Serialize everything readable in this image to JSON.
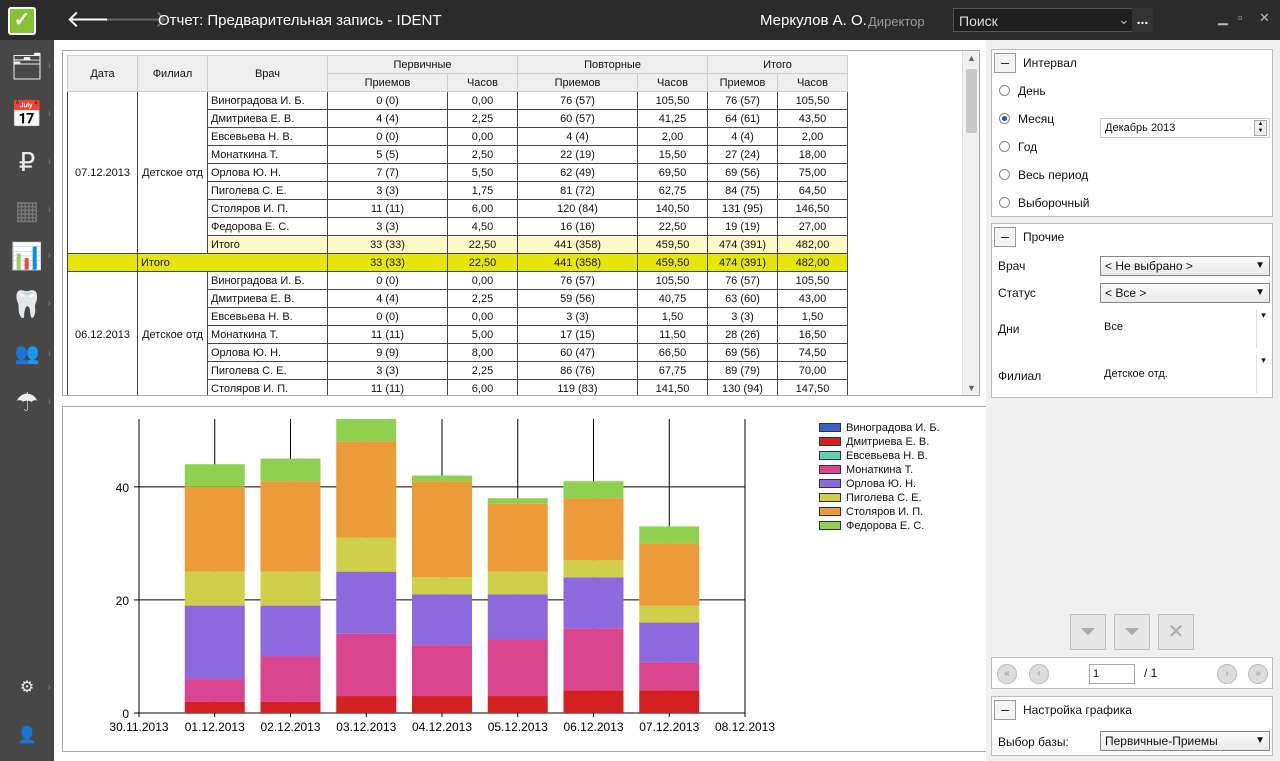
{
  "app": {
    "title": "Отчет: Предварительная запись  -  IDENT",
    "user": "Меркулов А. О.",
    "role": "Директор",
    "search_placeholder": "Поиск",
    "search_more": "...",
    "back_icon": "back-arrow-icon",
    "forward_icon": "forward-arrow-icon"
  },
  "sidebar": [
    "contacts-icon",
    "calendar-icon",
    "finance-icon",
    "cashbox-icon",
    "reports-icon",
    "tooth-icon",
    "staff-icon",
    "insurance-icon",
    "settings-icon",
    "user-icon"
  ],
  "grid": {
    "headers": {
      "date": "Дата",
      "branch": "Филиал",
      "doctor": "Врач",
      "primary": "Первичные",
      "repeat": "Повторные",
      "total": "Итого",
      "visits": "Приемов",
      "hours": "Часов"
    },
    "groups": [
      {
        "date": "07.12.2013",
        "branch": "Детское отд",
        "rows": [
          [
            "Виноградова И. Б.",
            "0 (0)",
            "0,00",
            "76 (57)",
            "105,50",
            "76 (57)",
            "105,50"
          ],
          [
            "Дмитриева Е. В.",
            "4 (4)",
            "2,25",
            "60 (57)",
            "41,25",
            "64 (61)",
            "43,50"
          ],
          [
            "Евсевьева Н. В.",
            "0 (0)",
            "0,00",
            "4 (4)",
            "2,00",
            "4 (4)",
            "2,00"
          ],
          [
            "Монаткина Т.",
            "5 (5)",
            "2,50",
            "22 (19)",
            "15,50",
            "27 (24)",
            "18,00"
          ],
          [
            "Орлова Ю. Н.",
            "7 (7)",
            "5,50",
            "62 (49)",
            "69,50",
            "69 (56)",
            "75,00"
          ],
          [
            "Пиголева С. Е.",
            "3 (3)",
            "1,75",
            "81 (72)",
            "62,75",
            "84 (75)",
            "64,50"
          ],
          [
            "Столяров И. П.",
            "11 (11)",
            "6,00",
            "120 (84)",
            "140,50",
            "131 (95)",
            "146,50"
          ],
          [
            "Федорова Е. С.",
            "3 (3)",
            "4,50",
            "16 (16)",
            "22,50",
            "19 (19)",
            "27,00"
          ]
        ],
        "subtotal": [
          "Итого",
          "33 (33)",
          "22,50",
          "441 (358)",
          "459,50",
          "474 (391)",
          "482,00"
        ],
        "total": [
          "Итого",
          "33 (33)",
          "22,50",
          "441 (358)",
          "459,50",
          "474 (391)",
          "482,00"
        ]
      },
      {
        "date": "06.12.2013",
        "branch": "Детское отд",
        "rows": [
          [
            "Виноградова И. Б.",
            "0 (0)",
            "0,00",
            "76 (57)",
            "105,50",
            "76 (57)",
            "105,50"
          ],
          [
            "Дмитриева Е. В.",
            "4 (4)",
            "2,25",
            "59 (56)",
            "40,75",
            "63 (60)",
            "43,00"
          ],
          [
            "Евсевьева Н. В.",
            "0 (0)",
            "0,00",
            "3 (3)",
            "1,50",
            "3 (3)",
            "1,50"
          ],
          [
            "Монаткина Т.",
            "11 (11)",
            "5,00",
            "17 (15)",
            "11,50",
            "28 (26)",
            "16,50"
          ],
          [
            "Орлова Ю. Н.",
            "9 (9)",
            "8,00",
            "60 (47)",
            "66,50",
            "69 (56)",
            "74,50"
          ],
          [
            "Пиголева С. Е.",
            "3 (3)",
            "2,25",
            "86 (76)",
            "67,75",
            "89 (79)",
            "70,00"
          ],
          [
            "Столяров И. П.",
            "11 (11)",
            "6,00",
            "119 (83)",
            "141,50",
            "130 (94)",
            "147,50"
          ]
        ]
      }
    ]
  },
  "chart_data": {
    "type": "bar",
    "stacked": true,
    "x": [
      "30.11.2013",
      "01.12.2013",
      "02.12.2013",
      "03.12.2013",
      "04.12.2013",
      "05.12.2013",
      "06.12.2013",
      "07.12.2013",
      "08.12.2013"
    ],
    "categories": [
      "01.12.2013",
      "02.12.2013",
      "03.12.2013",
      "04.12.2013",
      "05.12.2013",
      "06.12.2013",
      "07.12.2013"
    ],
    "ylim": [
      0,
      52
    ],
    "yticks": [
      0,
      20,
      40
    ],
    "grid": true,
    "legend": "top-right",
    "series": [
      {
        "name": "Виноградова И. Б.",
        "color": "#3a5fcd",
        "values": [
          0,
          0,
          0,
          0,
          0,
          0,
          0
        ]
      },
      {
        "name": "Дмитриева Е. В.",
        "color": "#d42020",
        "values": [
          2,
          2,
          3,
          3,
          3,
          4,
          4
        ]
      },
      {
        "name": "Евсевьева Н. В.",
        "color": "#5fd2a8",
        "values": [
          0,
          0,
          0,
          0,
          0,
          0,
          0
        ]
      },
      {
        "name": "Монаткина Т.",
        "color": "#d9458e",
        "values": [
          4,
          8,
          11,
          9,
          10,
          11,
          5
        ]
      },
      {
        "name": "Орлова Ю. Н.",
        "color": "#8c6ade",
        "values": [
          13,
          9,
          11,
          9,
          8,
          9,
          7
        ]
      },
      {
        "name": "Пиголева С. Е.",
        "color": "#cfcf4a",
        "values": [
          6,
          6,
          6,
          3,
          4,
          3,
          3
        ]
      },
      {
        "name": "Столяров И. П.",
        "color": "#ed9a38",
        "values": [
          15,
          16,
          17,
          17,
          12,
          11,
          11
        ]
      },
      {
        "name": "Федорова Е. С.",
        "color": "#8fd14f",
        "values": [
          4,
          4,
          4,
          1,
          1,
          3,
          3
        ]
      }
    ]
  },
  "filters": {
    "interval": {
      "title": "Интервал",
      "options": [
        "День",
        "Месяц",
        "Год",
        "Весь период",
        "Выборочный"
      ],
      "selected": 1,
      "month": "Декабрь  2013"
    },
    "other": {
      "title": "Прочие",
      "doctor_label": "Врач",
      "doctor": "< Не выбрано >",
      "status_label": "Статус",
      "status": "< Все >",
      "days_label": "Дни",
      "days": "Все",
      "branch_label": "Филиал",
      "branch": "Детское отд."
    },
    "pager": {
      "page": "1",
      "total": "/ 1"
    },
    "chart_settings": {
      "title": "Настройка графика",
      "base_label": "Выбор базы:",
      "base": "Первичные-Приемы"
    }
  }
}
